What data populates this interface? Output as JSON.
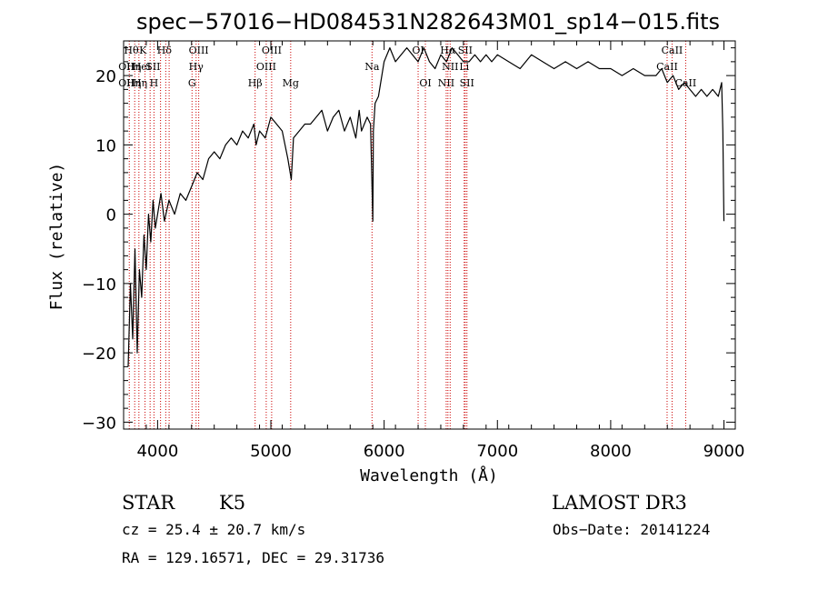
{
  "chart_data": {
    "type": "line",
    "title": "spec−57016−HD084531N282643M01_sp14−015.fits",
    "xlabel": "Wavelength (Å)",
    "ylabel": "Flux (relative)",
    "xlim": [
      3700,
      9100
    ],
    "ylim": [
      -31,
      25
    ],
    "xticks": [
      {
        "value": 4000,
        "label": "4000"
      },
      {
        "value": 5000,
        "label": "5000"
      },
      {
        "value": 6000,
        "label": "6000"
      },
      {
        "value": 7000,
        "label": "7000"
      },
      {
        "value": 8000,
        "label": "8000"
      },
      {
        "value": 9000,
        "label": "9000"
      }
    ],
    "yticks": [
      {
        "value": -30,
        "label": "−30"
      },
      {
        "value": -20,
        "label": "−20"
      },
      {
        "value": -10,
        "label": "−10"
      },
      {
        "value": 0,
        "label": "0"
      },
      {
        "value": 10,
        "label": "10"
      },
      {
        "value": 20,
        "label": "20"
      }
    ],
    "series": [
      {
        "color": "#000000",
        "x": [
          3740,
          3760,
          3780,
          3800,
          3820,
          3840,
          3860,
          3880,
          3900,
          3920,
          3940,
          3960,
          3980,
          4000,
          4030,
          4060,
          4100,
          4150,
          4200,
          4250,
          4300,
          4350,
          4400,
          4450,
          4500,
          4550,
          4600,
          4650,
          4700,
          4750,
          4800,
          4850,
          4870,
          4900,
          4950,
          5000,
          5050,
          5100,
          5150,
          5180,
          5200,
          5250,
          5300,
          5350,
          5400,
          5450,
          5500,
          5550,
          5600,
          5650,
          5700,
          5750,
          5780,
          5800,
          5850,
          5880,
          5900,
          5905,
          5920,
          5950,
          6000,
          6050,
          6100,
          6150,
          6200,
          6250,
          6300,
          6350,
          6400,
          6450,
          6500,
          6550,
          6600,
          6650,
          6700,
          6750,
          6800,
          6850,
          6900,
          6950,
          7000,
          7100,
          7200,
          7300,
          7400,
          7500,
          7600,
          7700,
          7800,
          7900,
          8000,
          8100,
          8200,
          8300,
          8400,
          8450,
          8500,
          8550,
          8600,
          8650,
          8700,
          8750,
          8800,
          8850,
          8900,
          8950,
          8980,
          8990,
          9000
        ],
        "y": [
          -22,
          -10,
          -18,
          -5,
          -20,
          -8,
          -12,
          -3,
          -8,
          0,
          -4,
          2,
          -2,
          0,
          3,
          -1,
          2,
          0,
          3,
          2,
          4,
          6,
          5,
          8,
          9,
          8,
          10,
          11,
          10,
          12,
          11,
          13,
          10,
          12,
          11,
          14,
          13,
          12,
          8,
          5,
          11,
          12,
          13,
          13,
          14,
          15,
          12,
          14,
          15,
          12,
          14,
          11,
          15,
          12,
          14,
          13,
          -1,
          12,
          16,
          17,
          22,
          24,
          22,
          23,
          24,
          23,
          22,
          24,
          22,
          21,
          23,
          22,
          24,
          23,
          22,
          22,
          23,
          22,
          23,
          22,
          23,
          22,
          21,
          23,
          22,
          21,
          22,
          21,
          22,
          21,
          21,
          20,
          21,
          20,
          20,
          21,
          19,
          20,
          18,
          19,
          18,
          17,
          18,
          17,
          18,
          17,
          19,
          12,
          -1
        ]
      }
    ],
    "spectral_lines": [
      {
        "x": 3750,
        "label": ""
      },
      {
        "x": 3798,
        "label": ""
      },
      {
        "x": 3835,
        "label": ""
      },
      {
        "x": 3889,
        "label": ""
      },
      {
        "x": 3934,
        "label": ""
      },
      {
        "x": 3968,
        "label": ""
      },
      {
        "x": 4026,
        "label": ""
      },
      {
        "x": 4072,
        "label": ""
      },
      {
        "x": 4102,
        "label": ""
      },
      {
        "x": 4304,
        "label": ""
      },
      {
        "x": 4340,
        "label": ""
      },
      {
        "x": 4363,
        "label": ""
      },
      {
        "x": 4861,
        "label": ""
      },
      {
        "x": 4959,
        "label": ""
      },
      {
        "x": 5007,
        "label": ""
      },
      {
        "x": 5175,
        "label": ""
      },
      {
        "x": 5893,
        "label": ""
      },
      {
        "x": 6300,
        "label": ""
      },
      {
        "x": 6364,
        "label": ""
      },
      {
        "x": 6548,
        "label": ""
      },
      {
        "x": 6563,
        "label": ""
      },
      {
        "x": 6583,
        "label": ""
      },
      {
        "x": 6707,
        "label": ""
      },
      {
        "x": 6716,
        "label": ""
      },
      {
        "x": 6731,
        "label": ""
      },
      {
        "x": 8498,
        "label": ""
      },
      {
        "x": 8542,
        "label": ""
      },
      {
        "x": 8662,
        "label": ""
      }
    ],
    "line_labels": [
      {
        "x": 3768,
        "row": 1,
        "label": "Hθ"
      },
      {
        "x": 3725,
        "row": 2,
        "label": "OII"
      },
      {
        "x": 3725,
        "row": 3,
        "label": "OII"
      },
      {
        "x": 3790,
        "row": 2,
        "label": "Hη"
      },
      {
        "x": 3790,
        "row": 3,
        "label": "Hη"
      },
      {
        "x": 3845,
        "row": 3,
        "label": "Hη"
      },
      {
        "x": 3870,
        "row": 1,
        "label": "K"
      },
      {
        "x": 3860,
        "row": 2,
        "label": "HeI"
      },
      {
        "x": 3960,
        "row": 2,
        "label": "SII"
      },
      {
        "x": 3968,
        "row": 3,
        "label": "H"
      },
      {
        "x": 4060,
        "row": 1,
        "label": "Hδ"
      },
      {
        "x": 4363,
        "row": 1,
        "label": "OIII"
      },
      {
        "x": 4340,
        "row": 2,
        "label": "Hγ"
      },
      {
        "x": 4304,
        "row": 3,
        "label": "G"
      },
      {
        "x": 4861,
        "row": 3,
        "label": "Hβ"
      },
      {
        "x": 5007,
        "row": 1,
        "label": "OIII"
      },
      {
        "x": 4959,
        "row": 2,
        "label": "OIII"
      },
      {
        "x": 5175,
        "row": 3,
        "label": "Mg"
      },
      {
        "x": 5893,
        "row": 2,
        "label": "Na"
      },
      {
        "x": 6300,
        "row": 1,
        "label": "OI"
      },
      {
        "x": 6364,
        "row": 3,
        "label": "OI"
      },
      {
        "x": 6563,
        "row": 1,
        "label": "Hα"
      },
      {
        "x": 6583,
        "row": 2,
        "label": "NII"
      },
      {
        "x": 6548,
        "row": 3,
        "label": "NII"
      },
      {
        "x": 6716,
        "row": 1,
        "label": "SII"
      },
      {
        "x": 6707,
        "row": 2,
        "label": "Li"
      },
      {
        "x": 6731,
        "row": 3,
        "label": "SII"
      },
      {
        "x": 8542,
        "row": 1,
        "label": "CaII"
      },
      {
        "x": 8498,
        "row": 2,
        "label": "CaII"
      },
      {
        "x": 8662,
        "row": 3,
        "label": "CaII"
      }
    ],
    "grid": false,
    "legend": "none"
  },
  "info": {
    "class": "STAR",
    "subclass": "K5",
    "survey": "LAMOST DR3",
    "cz": "cz = 25.4 ± 20.7 km/s",
    "obs_date": "Obs−Date: 20141224",
    "coords": "RA = 129.16571, DEC =  29.31736"
  },
  "colors": {
    "spectrum": "#000000",
    "line_markers": "#cc0000",
    "axes": "#000000",
    "background": "#ffffff"
  }
}
